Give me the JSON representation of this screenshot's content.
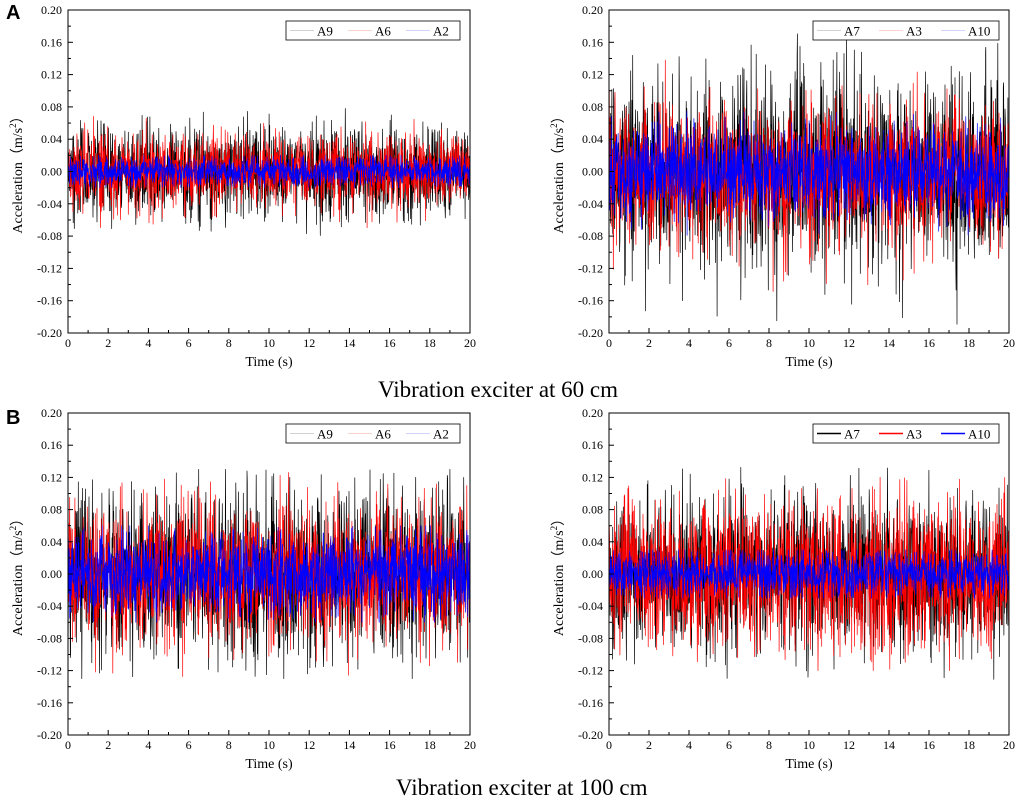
{
  "panels": [
    {
      "letter": "A",
      "caption": "Vibration exciter at 60 cm"
    },
    {
      "letter": "B",
      "caption": "Vibration exciter at 100 cm"
    }
  ],
  "chart_data": [
    {
      "type": "line",
      "panel": "A",
      "title": "",
      "xlabel": "Time (s)",
      "ylabel": "Acceleration（m/s²）",
      "ylabel_base": "Acceleration（m/s",
      "ylabel_sup": "2",
      "ylabel_end": "）",
      "xlim": [
        0,
        20
      ],
      "ylim": [
        -0.2,
        0.2
      ],
      "xticks": [
        0,
        2,
        4,
        6,
        8,
        10,
        12,
        14,
        16,
        18,
        20
      ],
      "yticks": [
        "-0.20",
        "-0.16",
        "-0.12",
        "-0.08",
        "-0.04",
        "0.00",
        "0.04",
        "0.08",
        "0.12",
        "0.16",
        "0.20"
      ],
      "legend_position": "top-right",
      "legend_style": "faint",
      "series": [
        {
          "name": "A9",
          "color": "#000000",
          "amplitude": 0.028,
          "peak": 0.08,
          "seed": 11
        },
        {
          "name": "A6",
          "color": "#ff0000",
          "amplitude": 0.022,
          "peak": 0.07,
          "seed": 23
        },
        {
          "name": "A2",
          "color": "#0000ff",
          "amplitude": 0.009,
          "peak": 0.02,
          "seed": 37
        }
      ]
    },
    {
      "type": "line",
      "panel": "A",
      "title": "",
      "xlabel": "Time (s)",
      "ylabel": "Acceleration（m/s²）",
      "ylabel_base": "Acceleration（m/s",
      "ylabel_sup": "2",
      "ylabel_end": "）",
      "xlim": [
        0,
        20
      ],
      "ylim": [
        -0.2,
        0.2
      ],
      "xticks": [
        0,
        2,
        4,
        6,
        8,
        10,
        12,
        14,
        16,
        18,
        20
      ],
      "yticks": [
        "-0.20",
        "-0.16",
        "-0.12",
        "-0.08",
        "-0.04",
        "0.00",
        "0.04",
        "0.08",
        "0.12",
        "0.16",
        "0.20"
      ],
      "legend_position": "top-right",
      "legend_style": "faint",
      "series": [
        {
          "name": "A7",
          "color": "#000000",
          "amplitude": 0.055,
          "peak": 0.19,
          "seed": 41
        },
        {
          "name": "A3",
          "color": "#ff0000",
          "amplitude": 0.042,
          "peak": 0.15,
          "seed": 53
        },
        {
          "name": "A10",
          "color": "#0000ff",
          "amplitude": 0.028,
          "peak": 0.08,
          "seed": 67
        }
      ]
    },
    {
      "type": "line",
      "panel": "B",
      "title": "",
      "xlabel": "Time (s)",
      "ylabel": "Acceleration（m/s²）",
      "ylabel_base": "Acceleration（m/s",
      "ylabel_sup": "2",
      "ylabel_end": "）",
      "xlim": [
        0,
        20
      ],
      "ylim": [
        -0.2,
        0.2
      ],
      "xticks": [
        0,
        2,
        4,
        6,
        8,
        10,
        12,
        14,
        16,
        18,
        20
      ],
      "yticks": [
        "-0.20",
        "-0.16",
        "-0.12",
        "-0.08",
        "-0.04",
        "0.00",
        "0.04",
        "0.08",
        "0.12",
        "0.16",
        "0.20"
      ],
      "legend_position": "top-right",
      "legend_style": "faint",
      "series": [
        {
          "name": "A9",
          "color": "#000000",
          "amplitude": 0.05,
          "peak": 0.13,
          "seed": 71
        },
        {
          "name": "A6",
          "color": "#ff0000",
          "amplitude": 0.04,
          "peak": 0.13,
          "seed": 83
        },
        {
          "name": "A2",
          "color": "#0000ff",
          "amplitude": 0.025,
          "peak": 0.06,
          "seed": 97
        }
      ]
    },
    {
      "type": "line",
      "panel": "B",
      "title": "",
      "xlabel": "Time (s)",
      "ylabel": "Acceleration（m/s²）",
      "ylabel_base": "Acceleration（m/s",
      "ylabel_sup": "2",
      "ylabel_end": "）",
      "xlim": [
        0,
        20
      ],
      "ylim": [
        -0.2,
        0.2
      ],
      "xticks": [
        0,
        2,
        4,
        6,
        8,
        10,
        12,
        14,
        16,
        18,
        20
      ],
      "yticks": [
        "-0.20",
        "-0.16",
        "-0.12",
        "-0.08",
        "-0.04",
        "0.00",
        "0.04",
        "0.08",
        "0.12",
        "0.16",
        "0.20"
      ],
      "legend_position": "top-right",
      "legend_style": "normal",
      "series": [
        {
          "name": "A7",
          "color": "#000000",
          "amplitude": 0.045,
          "peak": 0.14,
          "seed": 101
        },
        {
          "name": "A3",
          "color": "#ff0000",
          "amplitude": 0.045,
          "peak": 0.12,
          "seed": 113
        },
        {
          "name": "A10",
          "color": "#0000ff",
          "amplitude": 0.014,
          "peak": 0.03,
          "seed": 127
        }
      ]
    }
  ]
}
